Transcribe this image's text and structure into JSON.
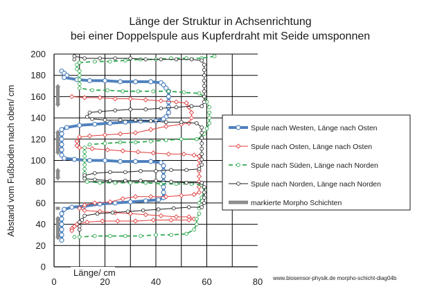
{
  "chart_data": {
    "type": "line",
    "title": "Länge der Struktur in Achsenrichtung",
    "subtitle": "bei einer Doppelspule aus Kupferdraht mit Seide umsponnen",
    "xlabel": "Länge/ cm",
    "ylabel": "Abstand vom Fußboden nach oben/ cm",
    "xlim": [
      0,
      80
    ],
    "ylim": [
      0,
      200
    ],
    "xticks": [
      0,
      20,
      40,
      60,
      80
    ],
    "yticks": [
      0,
      20,
      40,
      60,
      80,
      100,
      120,
      140,
      160,
      180,
      200
    ],
    "x_gridlines": [
      10,
      20,
      30,
      40,
      50,
      60,
      70
    ],
    "y_gridlines": [
      20,
      40,
      60,
      80,
      100,
      120,
      140,
      160,
      180,
      200
    ],
    "grid": true,
    "legend_position": "right",
    "footer": "www.biosensor-physik.de  morpho-schicht-diag04b",
    "series": [
      {
        "name": "Spule nach Westen, Länge nach Osten",
        "color": "#4f81bd",
        "style": "thick-solid-circle",
        "points": [
          [
            3,
            184
          ],
          [
            4,
            182
          ],
          [
            5,
            180
          ],
          [
            4,
            178
          ],
          [
            9,
            176
          ],
          [
            14,
            175
          ],
          [
            20,
            175
          ],
          [
            26,
            174
          ],
          [
            32,
            174
          ],
          [
            38,
            174
          ],
          [
            42,
            173
          ],
          [
            43,
            171
          ],
          [
            44,
            168
          ],
          [
            45,
            165
          ],
          [
            45,
            160
          ],
          [
            45,
            155
          ],
          [
            45,
            150
          ],
          [
            45,
            145
          ],
          [
            44,
            141
          ],
          [
            43,
            139
          ],
          [
            40,
            137
          ],
          [
            34,
            137
          ],
          [
            28,
            136
          ],
          [
            22,
            135
          ],
          [
            16,
            134
          ],
          [
            10,
            133
          ],
          [
            5,
            131
          ],
          [
            3,
            129
          ],
          [
            3,
            125
          ],
          [
            3,
            120
          ],
          [
            3,
            115
          ],
          [
            3,
            110
          ],
          [
            3,
            105
          ],
          [
            4,
            102
          ],
          [
            8,
            101
          ],
          [
            14,
            100
          ],
          [
            20,
            100
          ],
          [
            26,
            99
          ],
          [
            32,
            99
          ],
          [
            38,
            99
          ],
          [
            42,
            98
          ],
          [
            43,
            95
          ],
          [
            43,
            90
          ],
          [
            43,
            85
          ],
          [
            43,
            80
          ],
          [
            43,
            75
          ],
          [
            43,
            70
          ],
          [
            43,
            65
          ],
          [
            41,
            63
          ],
          [
            36,
            62
          ],
          [
            30,
            61
          ],
          [
            24,
            60
          ],
          [
            18,
            59
          ],
          [
            12,
            57
          ],
          [
            7,
            56
          ],
          [
            4,
            54
          ],
          [
            3,
            50
          ],
          [
            3,
            45
          ],
          [
            3,
            40
          ],
          [
            3,
            35
          ],
          [
            3,
            30
          ],
          [
            3,
            25
          ]
        ]
      },
      {
        "name": "Spule nach Osten, Länge nach Osten",
        "color": "#e03b3b",
        "style": "thin-solid-diamond",
        "points": [
          [
            7,
            160
          ],
          [
            12,
            159
          ],
          [
            18,
            159
          ],
          [
            24,
            158
          ],
          [
            30,
            158
          ],
          [
            36,
            157
          ],
          [
            42,
            156
          ],
          [
            48,
            155
          ],
          [
            52,
            154
          ],
          [
            53,
            150
          ],
          [
            54,
            145
          ],
          [
            54,
            140
          ],
          [
            53,
            135
          ],
          [
            50,
            134
          ],
          [
            44,
            132
          ],
          [
            38,
            129
          ],
          [
            32,
            126
          ],
          [
            26,
            125
          ],
          [
            20,
            124
          ],
          [
            14,
            123
          ],
          [
            10,
            122
          ],
          [
            9,
            118
          ],
          [
            9,
            114
          ],
          [
            10,
            112
          ],
          [
            15,
            111
          ],
          [
            21,
            110
          ],
          [
            27,
            109
          ],
          [
            33,
            108
          ],
          [
            39,
            107
          ],
          [
            45,
            106
          ],
          [
            51,
            106
          ],
          [
            55,
            105
          ],
          [
            57,
            104
          ],
          [
            57,
            100
          ],
          [
            57,
            95
          ],
          [
            57,
            90
          ],
          [
            57,
            85
          ],
          [
            57,
            80
          ],
          [
            57,
            75
          ],
          [
            57,
            70
          ],
          [
            55,
            68
          ],
          [
            50,
            67
          ],
          [
            44,
            66
          ],
          [
            38,
            66
          ],
          [
            32,
            66
          ],
          [
            27,
            64
          ],
          [
            22,
            61
          ],
          [
            16,
            60
          ],
          [
            12,
            58
          ],
          [
            10,
            55
          ],
          [
            12,
            53
          ],
          [
            18,
            52
          ],
          [
            24,
            51
          ],
          [
            30,
            50
          ],
          [
            36,
            49
          ],
          [
            42,
            48
          ],
          [
            48,
            47
          ],
          [
            53,
            47
          ],
          [
            55,
            45
          ],
          [
            53,
            44
          ],
          [
            46,
            44
          ],
          [
            39,
            44
          ],
          [
            32,
            43
          ],
          [
            25,
            43
          ],
          [
            19,
            43
          ],
          [
            13,
            42
          ],
          [
            9,
            40
          ],
          [
            8,
            38
          ],
          [
            7,
            36
          ],
          [
            7,
            34
          ]
        ]
      },
      {
        "name": "Spule nach Süden, Länge nach Norden",
        "color": "#2ea84f",
        "style": "dashed-circle",
        "points": [
          [
            63,
            198
          ],
          [
            58,
            196
          ],
          [
            52,
            196
          ],
          [
            46,
            196
          ],
          [
            40,
            195
          ],
          [
            34,
            195
          ],
          [
            28,
            194
          ],
          [
            22,
            193
          ],
          [
            16,
            193
          ],
          [
            10,
            192
          ],
          [
            9,
            190
          ],
          [
            9,
            186
          ],
          [
            10,
            184
          ],
          [
            10,
            180
          ],
          [
            10,
            176
          ],
          [
            10,
            172
          ],
          [
            10,
            168
          ],
          [
            15,
            166
          ],
          [
            21,
            166
          ],
          [
            27,
            165
          ],
          [
            33,
            165
          ],
          [
            39,
            165
          ],
          [
            45,
            165
          ],
          [
            51,
            164
          ],
          [
            57,
            163
          ],
          [
            59,
            160
          ],
          [
            60,
            155
          ],
          [
            61,
            150
          ],
          [
            61,
            145
          ],
          [
            61,
            140
          ],
          [
            61,
            135
          ],
          [
            60,
            130
          ],
          [
            59,
            125
          ],
          [
            58,
            122
          ],
          [
            56,
            120
          ],
          [
            50,
            120
          ],
          [
            44,
            119
          ],
          [
            38,
            118
          ],
          [
            32,
            117
          ],
          [
            26,
            117
          ],
          [
            20,
            116
          ],
          [
            14,
            115
          ],
          [
            12,
            112
          ],
          [
            12,
            108
          ],
          [
            12,
            104
          ],
          [
            12,
            100
          ],
          [
            12,
            96
          ],
          [
            12,
            92
          ],
          [
            12,
            88
          ],
          [
            12,
            84
          ],
          [
            13,
            80
          ],
          [
            18,
            79
          ],
          [
            24,
            79
          ],
          [
            30,
            79
          ],
          [
            36,
            79
          ],
          [
            42,
            78
          ],
          [
            48,
            78
          ],
          [
            54,
            78
          ],
          [
            58,
            77
          ],
          [
            59,
            74
          ],
          [
            59,
            70
          ],
          [
            58,
            65
          ],
          [
            57,
            60
          ],
          [
            57,
            55
          ],
          [
            57,
            50
          ],
          [
            56,
            45
          ],
          [
            56,
            40
          ],
          [
            55,
            35
          ],
          [
            52,
            31
          ],
          [
            46,
            30
          ],
          [
            40,
            30
          ],
          [
            34,
            29
          ],
          [
            28,
            29
          ],
          [
            22,
            29
          ],
          [
            16,
            29
          ],
          [
            10,
            28
          ],
          [
            8,
            28
          ]
        ]
      },
      {
        "name": "Spule nach Norden, Länge nach Norden",
        "color": "#1a1a1a",
        "style": "thin-solid-open-circle",
        "points": [
          [
            8,
            195
          ],
          [
            8,
            198
          ],
          [
            12,
            196
          ],
          [
            18,
            196
          ],
          [
            24,
            196
          ],
          [
            30,
            196
          ],
          [
            36,
            195
          ],
          [
            42,
            195
          ],
          [
            48,
            195
          ],
          [
            54,
            195
          ],
          [
            58,
            194
          ],
          [
            59,
            190
          ],
          [
            59,
            185
          ],
          [
            59,
            180
          ],
          [
            59,
            175
          ],
          [
            59,
            170
          ],
          [
            59,
            165
          ],
          [
            59,
            160
          ],
          [
            59,
            155
          ],
          [
            58,
            151
          ],
          [
            54,
            151
          ],
          [
            48,
            150
          ],
          [
            42,
            149
          ],
          [
            36,
            148
          ],
          [
            30,
            148
          ],
          [
            24,
            147
          ],
          [
            18,
            146
          ],
          [
            14,
            145
          ],
          [
            13,
            141
          ],
          [
            15,
            139
          ],
          [
            20,
            138
          ],
          [
            26,
            138
          ],
          [
            32,
            138
          ],
          [
            38,
            137
          ],
          [
            44,
            136
          ],
          [
            50,
            136
          ],
          [
            56,
            135
          ],
          [
            58,
            131
          ],
          [
            58,
            126
          ],
          [
            58,
            121
          ],
          [
            58,
            116
          ],
          [
            58,
            111
          ],
          [
            58,
            106
          ],
          [
            58,
            101
          ],
          [
            58,
            96
          ],
          [
            57,
            92
          ],
          [
            52,
            91
          ],
          [
            46,
            91
          ],
          [
            40,
            90
          ],
          [
            34,
            90
          ],
          [
            28,
            89
          ],
          [
            22,
            89
          ],
          [
            16,
            88
          ],
          [
            12,
            86
          ],
          [
            12,
            83
          ],
          [
            16,
            82
          ],
          [
            22,
            81
          ],
          [
            28,
            81
          ],
          [
            34,
            81
          ],
          [
            40,
            81
          ],
          [
            46,
            80
          ],
          [
            52,
            79
          ],
          [
            58,
            79
          ],
          [
            59,
            75
          ],
          [
            59,
            70
          ],
          [
            59,
            65
          ],
          [
            59,
            60
          ],
          [
            58,
            56
          ],
          [
            53,
            56
          ],
          [
            47,
            55
          ],
          [
            41,
            54
          ],
          [
            35,
            53
          ],
          [
            29,
            52
          ],
          [
            23,
            51
          ],
          [
            17,
            50
          ],
          [
            12,
            48
          ],
          [
            11,
            44
          ],
          [
            10,
            42
          ],
          [
            10,
            38
          ],
          [
            10,
            35
          ]
        ]
      }
    ],
    "morpho_layers": {
      "name": "markierte Morpho Schichten",
      "color": "#8c8c8c",
      "ranges": [
        [
          150,
          172
        ],
        [
          105,
          129
        ],
        [
          81,
          93
        ],
        [
          53,
          57
        ],
        [
          25,
          48
        ]
      ]
    }
  }
}
